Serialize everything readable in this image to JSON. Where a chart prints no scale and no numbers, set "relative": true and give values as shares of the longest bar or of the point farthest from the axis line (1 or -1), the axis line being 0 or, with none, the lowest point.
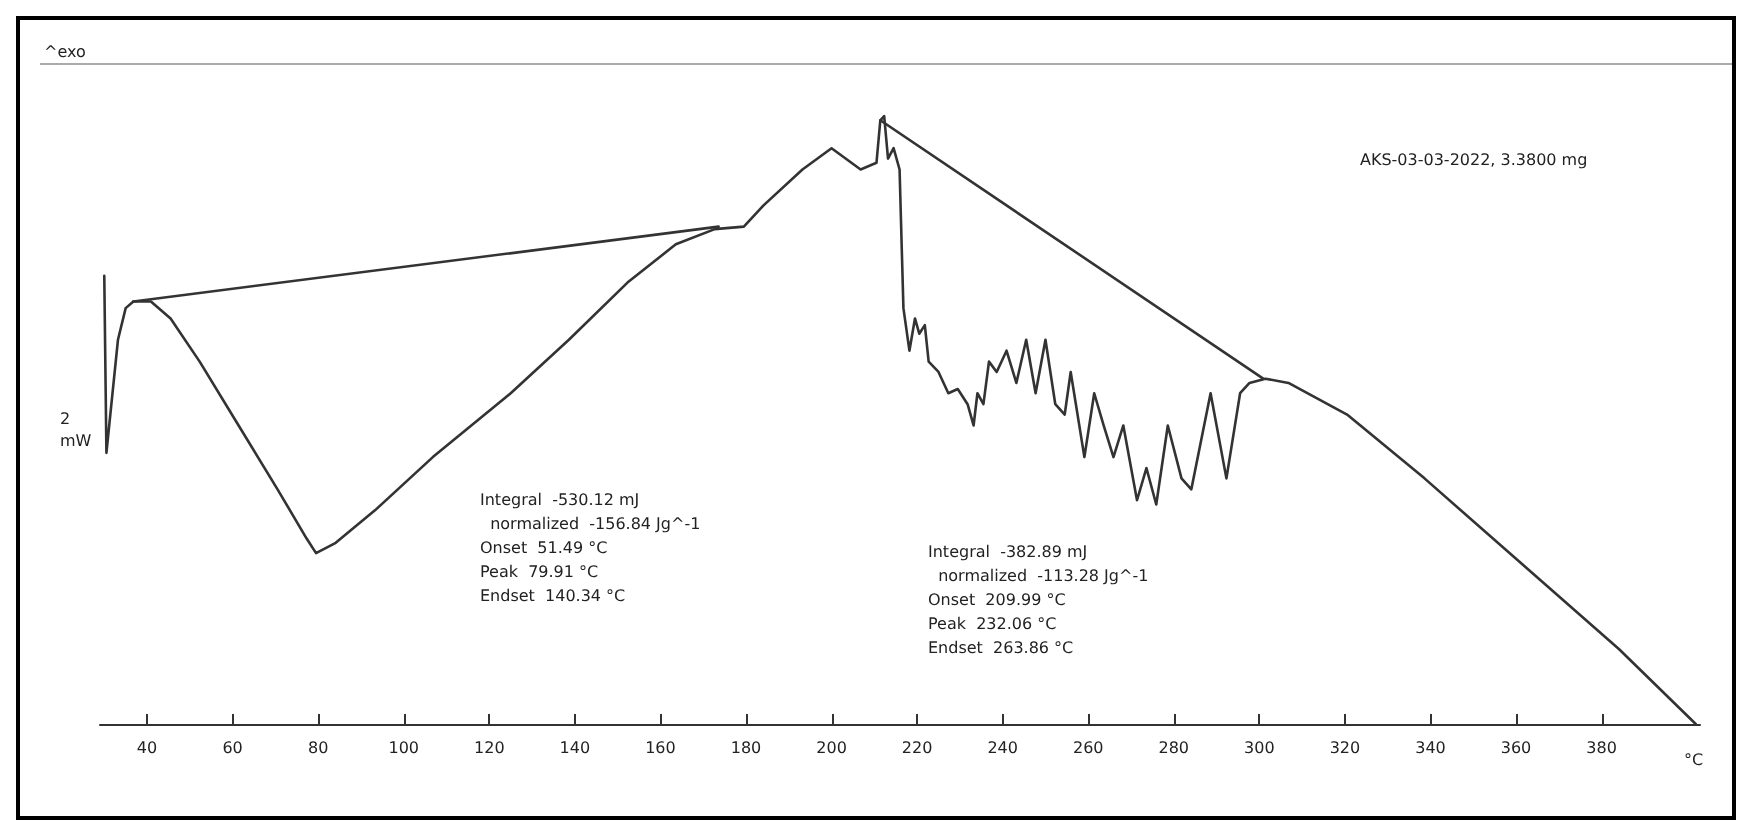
{
  "chart_data": {
    "type": "line",
    "relative": true,
    "xlabel": "°C",
    "ylabel": "2 mW",
    "annotations": [
      "^exo",
      "AKS-03-03-2022, 3.3800 mg",
      "Integral  -530.12 mJ\n  normalized  -156.84 Jg^-1\nOnset  51.49 °C\nPeak  79.91 °C\nEndset  140.34 °C",
      "Integral  -382.89 mJ\n  normalized  -113.28 Jg^-1\nOnset  209.99 °C\nPeak  232.06 °C\nEndset  263.86 °C"
    ],
    "xlim": [
      29,
      403
    ],
    "xticks": [
      40,
      60,
      80,
      100,
      120,
      140,
      160,
      180,
      200,
      220,
      240,
      260,
      280,
      300,
      320,
      340,
      360,
      380
    ],
    "grid": false,
    "marker": "none",
    "line_style": "solid",
    "series": [
      {
        "color": "#333333",
        "x": [
          30.0,
          30.5,
          33.2,
          35.0,
          36.8,
          40.9,
          45.5,
          52.3,
          61.4,
          70.5,
          77.3,
          79.5,
          84.1,
          93.2,
          106.8,
          125.0,
          138.6,
          152.3,
          163.6,
          172.7,
          179.5,
          184.1,
          193.2,
          200.0,
          206.8,
          210.5,
          211.4,
          212.3,
          213.2,
          214.5,
          215.9,
          216.8,
          218.2,
          219.5,
          220.5,
          221.8,
          222.7,
          225.0,
          227.3,
          229.5,
          231.8,
          233.2,
          234.1,
          235.5,
          236.8,
          238.6,
          240.9,
          243.2,
          245.5,
          247.7,
          250.0,
          252.3,
          254.5,
          255.9,
          259.1,
          261.4,
          263.6,
          265.9,
          268.2,
          271.4,
          273.6,
          275.9,
          278.6,
          281.8,
          284.1,
          288.6,
          292.3,
          295.5,
          297.7,
          301.4,
          306.8,
          320.5,
          338.6,
          361.4,
          384.1,
          402.0
        ],
        "values": [
          0.737,
          0.446,
          0.632,
          0.684,
          0.695,
          0.695,
          0.667,
          0.596,
          0.491,
          0.386,
          0.305,
          0.281,
          0.298,
          0.351,
          0.439,
          0.544,
          0.632,
          0.726,
          0.789,
          0.814,
          0.818,
          0.853,
          0.912,
          0.947,
          0.912,
          0.923,
          0.993,
          1.0,
          0.93,
          0.947,
          0.912,
          0.684,
          0.614,
          0.667,
          0.642,
          0.656,
          0.596,
          0.579,
          0.544,
          0.551,
          0.526,
          0.491,
          0.544,
          0.526,
          0.596,
          0.579,
          0.614,
          0.561,
          0.632,
          0.544,
          0.632,
          0.526,
          0.509,
          0.579,
          0.439,
          0.544,
          0.491,
          0.439,
          0.491,
          0.368,
          0.421,
          0.361,
          0.491,
          0.404,
          0.386,
          0.544,
          0.404,
          0.544,
          0.561,
          0.568,
          0.561,
          0.509,
          0.404,
          0.263,
          0.123,
          0.0
        ]
      },
      {
        "color": "#333333",
        "x": [
          36.8,
          173.6
        ],
        "values": [
          0.695,
          0.818
        ]
      },
      {
        "color": "#333333",
        "x": [
          211.4,
          300.9
        ],
        "values": [
          0.993,
          0.568
        ]
      }
    ]
  }
}
